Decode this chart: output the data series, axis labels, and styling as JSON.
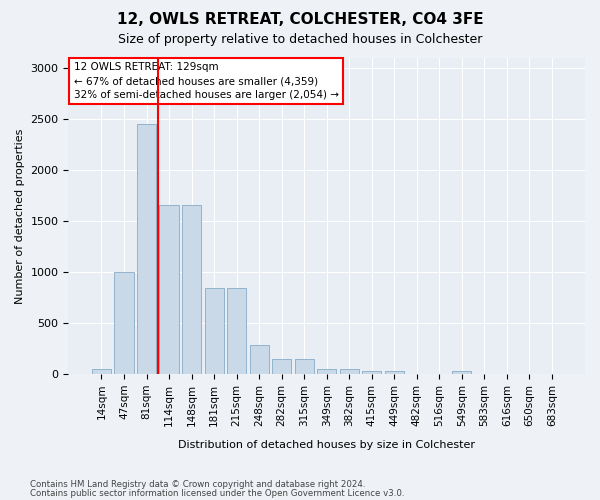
{
  "title": "12, OWLS RETREAT, COLCHESTER, CO4 3FE",
  "subtitle": "Size of property relative to detached houses in Colchester",
  "xlabel": "Distribution of detached houses by size in Colchester",
  "ylabel": "Number of detached properties",
  "footnote1": "Contains HM Land Registry data © Crown copyright and database right 2024.",
  "footnote2": "Contains public sector information licensed under the Open Government Licence v3.0.",
  "categories": [
    "14sqm",
    "47sqm",
    "81sqm",
    "114sqm",
    "148sqm",
    "181sqm",
    "215sqm",
    "248sqm",
    "282sqm",
    "315sqm",
    "349sqm",
    "382sqm",
    "415sqm",
    "449sqm",
    "482sqm",
    "516sqm",
    "549sqm",
    "583sqm",
    "616sqm",
    "650sqm",
    "683sqm"
  ],
  "values": [
    55,
    1000,
    2450,
    1660,
    1660,
    840,
    840,
    290,
    145,
    145,
    55,
    55,
    30,
    30,
    0,
    0,
    30,
    0,
    0,
    0,
    0
  ],
  "bar_color": "#c9d9e8",
  "bar_edge_color": "#87aac7",
  "red_line_x": 2.5,
  "annotation_text": "12 OWLS RETREAT: 129sqm\n← 67% of detached houses are smaller (4,359)\n32% of semi-detached houses are larger (2,054) →",
  "annotation_box_facecolor": "white",
  "annotation_box_edgecolor": "red",
  "red_line_color": "red",
  "ylim_max": 3100,
  "fig_bg": "#eef2f6",
  "axes_bg": "#e8eef4"
}
